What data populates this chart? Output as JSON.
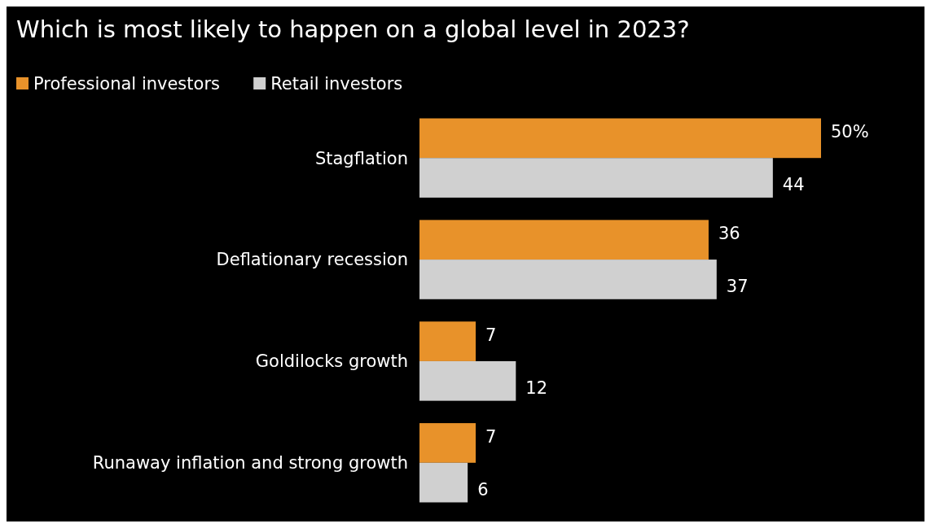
{
  "chart_data": {
    "type": "bar",
    "orientation": "horizontal",
    "title": "Which is most likely to happen on a global level in 2023?",
    "categories": [
      "Stagflation",
      "Deflationary recession",
      "Goldilocks growth",
      "Runaway inflation and strong growth"
    ],
    "series": [
      {
        "name": "Professional investors",
        "color": "#e8922a",
        "values": [
          50,
          36,
          7,
          7
        ],
        "value_labels": [
          "50%",
          "36",
          "7",
          "7"
        ]
      },
      {
        "name": "Retail investors",
        "color": "#d0d0d0",
        "values": [
          44,
          37,
          12,
          6
        ],
        "value_labels": [
          "44",
          "37",
          "12",
          "6"
        ]
      }
    ],
    "legend": "top left"
  }
}
